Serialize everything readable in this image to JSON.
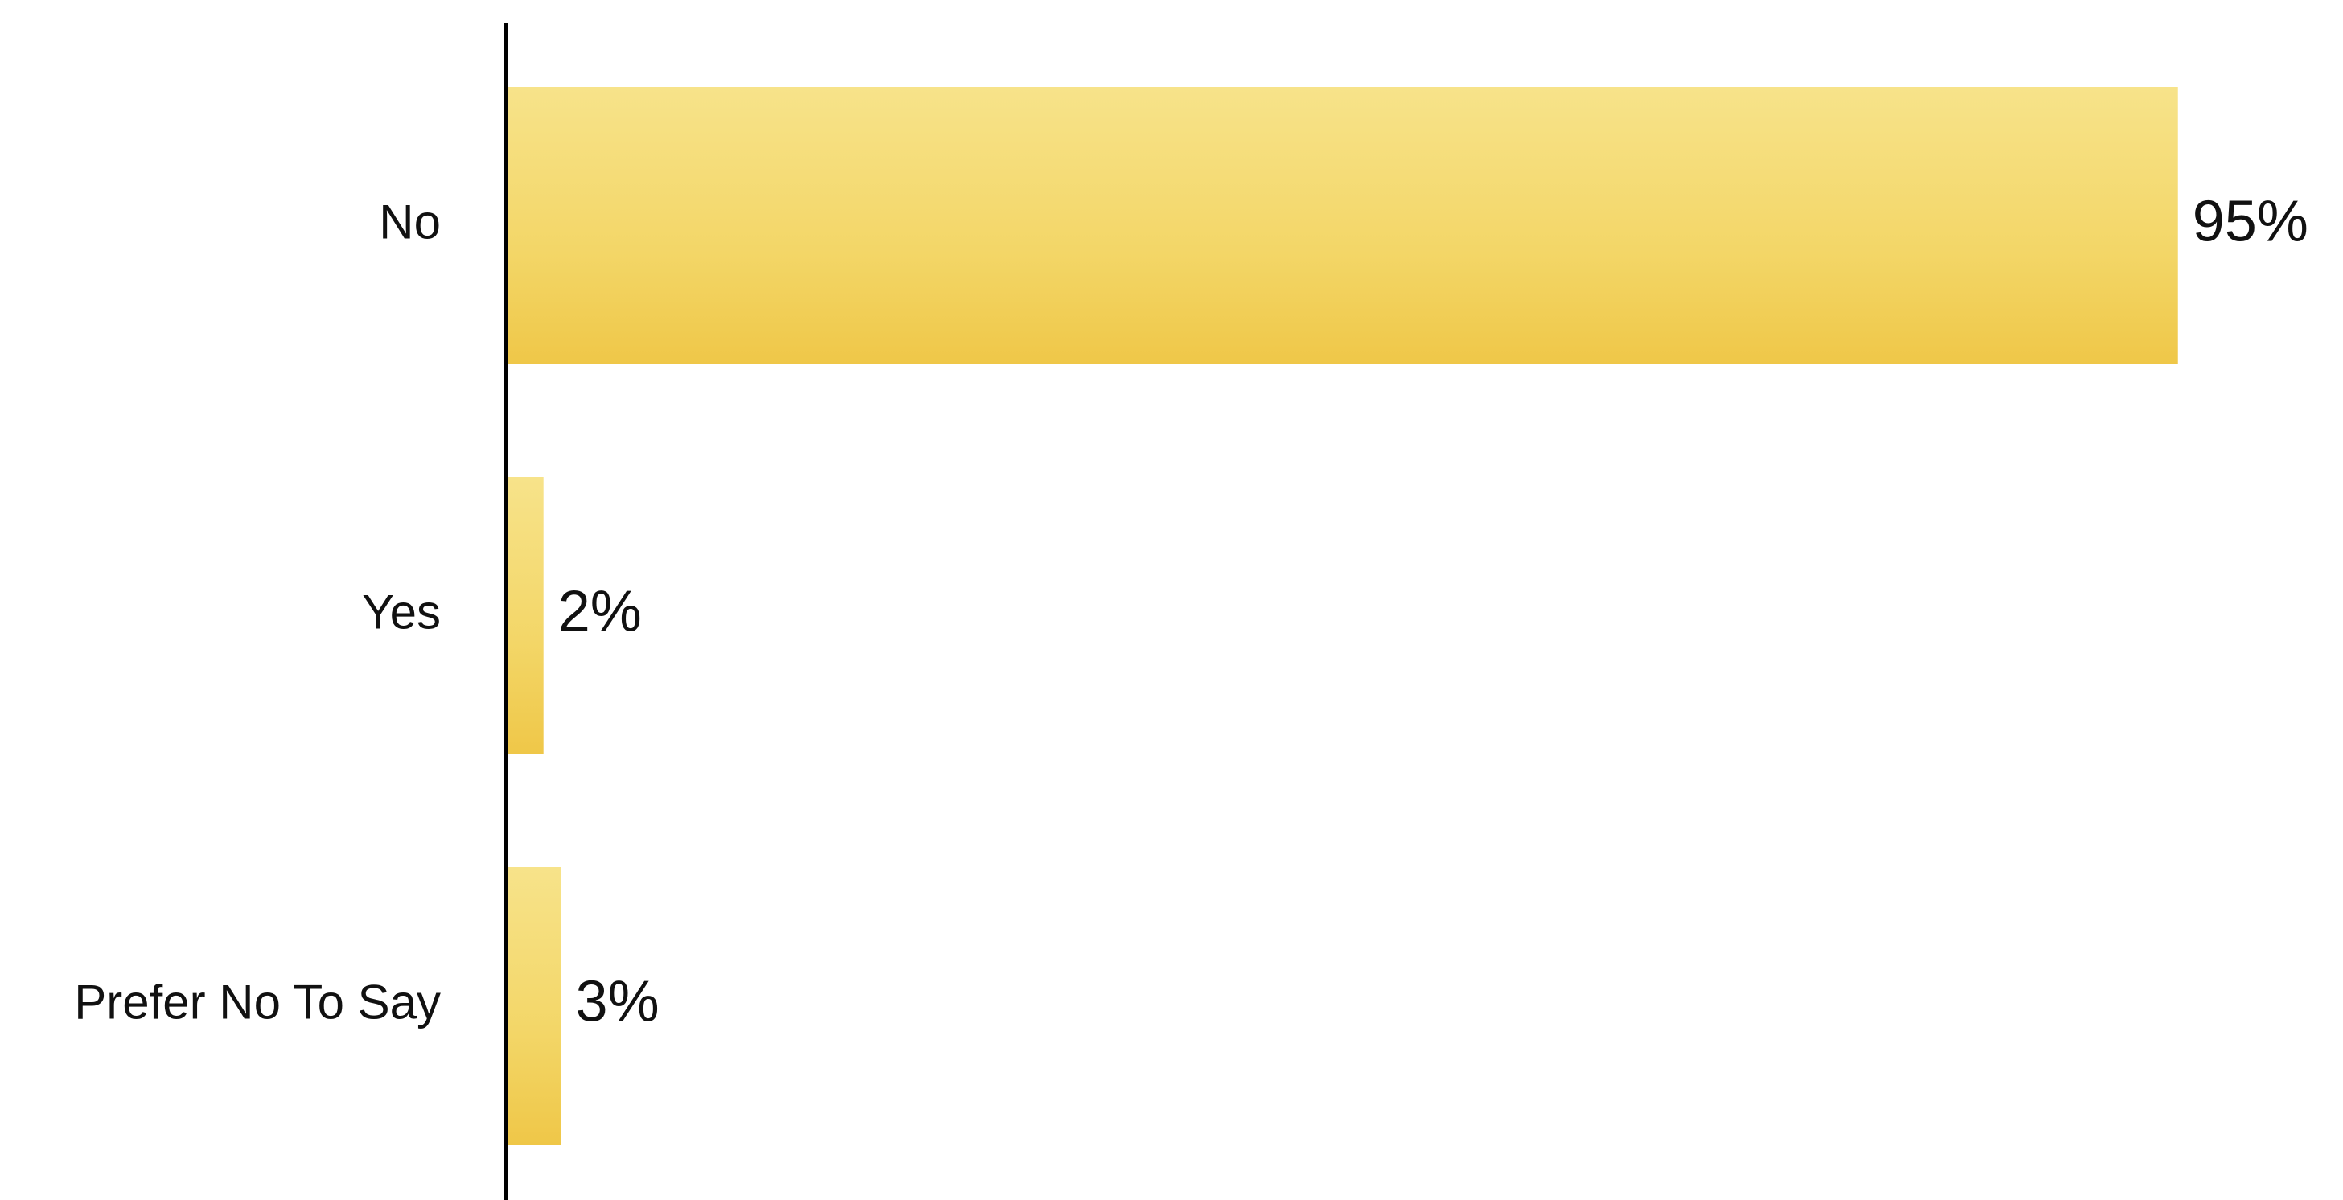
{
  "chart_data": {
    "type": "bar",
    "orientation": "horizontal",
    "categories": [
      "No",
      "Yes",
      "Prefer No To Say"
    ],
    "values": [
      95,
      2,
      3
    ],
    "value_labels": [
      "95%",
      "2%",
      "3%"
    ],
    "color": "#f3d667"
  }
}
